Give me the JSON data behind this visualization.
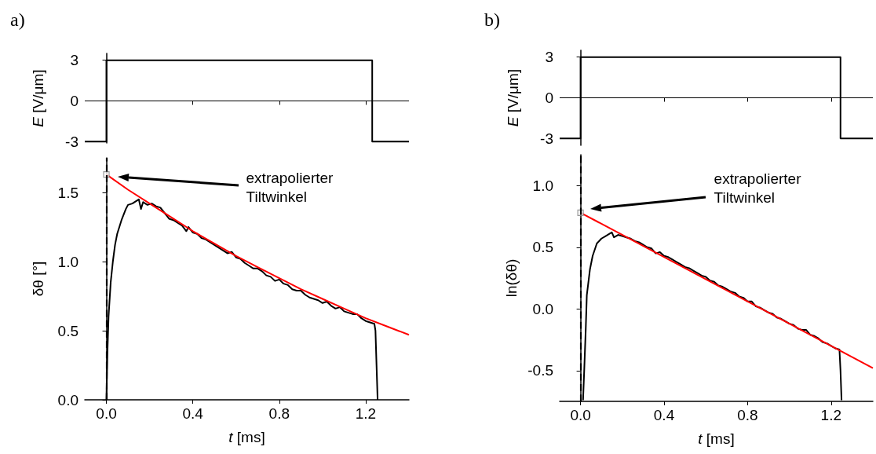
{
  "chart_data": [
    {
      "type": "line",
      "title": "a)",
      "ylabel": "E [V/μm]",
      "xlim": [
        -0.1,
        1.4
      ],
      "xticks": [
        {
          "value": 0,
          "label": null
        },
        {
          "value": 0.4,
          "label": null
        },
        {
          "value": 0.8,
          "label": null
        },
        {
          "value": 1.2,
          "label": null
        }
      ],
      "ylim": [
        -3.1,
        3.5
      ],
      "yticks": [
        -3,
        0,
        3
      ],
      "tick_labels": "y",
      "ref_lines": [
        {
          "axis": "y",
          "value": 0,
          "color": "#000000",
          "line_style": "solid"
        }
      ],
      "series": [
        {
          "color": "#000000",
          "x": [
            -0.1,
            0,
            0,
            1.23,
            1.23,
            1.4
          ],
          "values": [
            -3,
            -3,
            3,
            3,
            -3,
            -3
          ]
        }
      ]
    },
    {
      "type": "line",
      "xlabel": "t [ms]",
      "ylabel": "δθ [°]",
      "xlim": [
        -0.1,
        1.4
      ],
      "xticks": [
        {
          "value": 0,
          "label": "0.0"
        },
        {
          "value": 0.4,
          "label": "0.4"
        },
        {
          "value": 0.8,
          "label": "0.8"
        },
        {
          "value": 1.2,
          "label": "1.2"
        }
      ],
      "ylim": [
        0,
        1.75
      ],
      "yticks": [
        {
          "value": 0,
          "label": "0.0"
        },
        {
          "value": 0.5,
          "label": "0.5"
        },
        {
          "value": 1,
          "label": "1.0"
        },
        {
          "value": 1.5,
          "label": "1.5"
        }
      ],
      "grid": false,
      "ref_lines": [
        {
          "axis": "x",
          "value": 0,
          "color": "#000000",
          "line_style": "dashed"
        }
      ],
      "annotations": [
        "extrapolierter\nTiltwinkel"
      ],
      "series": [
        {
          "color": "#000000",
          "x": [
            0,
            0.005,
            0.01,
            0.02,
            0.03,
            0.04,
            0.05,
            0.07,
            0.09,
            0.1,
            0.12,
            0.14,
            0.15,
            0.16,
            0.17,
            0.19,
            0.21,
            0.23,
            0.25,
            0.27,
            0.29,
            0.31,
            0.33,
            0.35,
            0.37,
            0.38,
            0.4,
            0.42,
            0.44,
            0.46,
            0.48,
            0.5,
            0.52,
            0.54,
            0.56,
            0.58,
            0.6,
            0.62,
            0.64,
            0.66,
            0.68,
            0.7,
            0.72,
            0.74,
            0.76,
            0.78,
            0.8,
            0.82,
            0.84,
            0.86,
            0.88,
            0.9,
            0.92,
            0.94,
            0.96,
            0.98,
            1,
            1.02,
            1.04,
            1.06,
            1.08,
            1.1,
            1.12,
            1.14,
            1.16,
            1.18,
            1.2,
            1.22,
            1.24,
            1.245,
            1.25,
            1.255
          ],
          "values": [
            0,
            0.35,
            0.6,
            0.85,
            1,
            1.12,
            1.2,
            1.3,
            1.38,
            1.41,
            1.42,
            1.44,
            1.45,
            1.38,
            1.43,
            1.41,
            1.42,
            1.4,
            1.39,
            1.35,
            1.31,
            1.3,
            1.28,
            1.26,
            1.22,
            1.25,
            1.21,
            1.2,
            1.17,
            1.16,
            1.14,
            1.12,
            1.1,
            1.08,
            1.06,
            1.07,
            1.03,
            1.02,
            0.99,
            0.97,
            0.95,
            0.95,
            0.93,
            0.9,
            0.89,
            0.86,
            0.87,
            0.84,
            0.83,
            0.8,
            0.79,
            0.79,
            0.76,
            0.74,
            0.73,
            0.72,
            0.7,
            0.71,
            0.68,
            0.66,
            0.67,
            0.64,
            0.63,
            0.62,
            0.62,
            0.59,
            0.57,
            0.56,
            0.55,
            0.5,
            0.25,
            0
          ]
        },
        {
          "color": "#ff0000",
          "x": [
            0,
            0.1,
            0.2,
            0.3,
            0.4,
            0.5,
            0.6,
            0.7,
            0.8,
            0.9,
            1,
            1.1,
            1.2,
            1.3,
            1.4
          ],
          "values": [
            1.63,
            1.52,
            1.42,
            1.32,
            1.22,
            1.13,
            1.04,
            0.96,
            0.88,
            0.8,
            0.73,
            0.66,
            0.59,
            0.53,
            0.47
          ]
        },
        {
          "type": "scatter",
          "marker": "square",
          "color": "#808080",
          "x": [
            0
          ],
          "values": [
            1.63
          ]
        }
      ]
    },
    {
      "type": "line",
      "title": "b)",
      "ylabel": "E [V/μm]",
      "xlim": [
        -0.1,
        1.4
      ],
      "xticks": [
        {
          "value": 0,
          "label": null
        },
        {
          "value": 0.4,
          "label": null
        },
        {
          "value": 0.8,
          "label": null
        },
        {
          "value": 1.2,
          "label": null
        }
      ],
      "ylim": [
        -3.5,
        3.5
      ],
      "yticks": [
        -3,
        0,
        3
      ],
      "tick_labels": "y",
      "ref_lines": [
        {
          "axis": "y",
          "value": 0,
          "color": "#000000",
          "line_style": "solid"
        }
      ],
      "series": [
        {
          "color": "#000000",
          "x": [
            -0.1,
            0,
            0,
            1.245,
            1.245,
            1.4
          ],
          "values": [
            -3,
            -3,
            3,
            3,
            -3,
            -3
          ]
        }
      ]
    },
    {
      "type": "line",
      "xlabel": "t [ms]",
      "ylabel": "ln(δθ)",
      "xlim": [
        -0.1,
        1.4
      ],
      "xticks": [
        {
          "value": 0,
          "label": "0.0"
        },
        {
          "value": 0.4,
          "label": "0.4"
        },
        {
          "value": 0.8,
          "label": "0.8"
        },
        {
          "value": 1.2,
          "label": "1.2"
        }
      ],
      "ylim": [
        -0.75,
        1.25
      ],
      "yticks": [
        {
          "value": -0.5,
          "label": "-0.5"
        },
        {
          "value": 0,
          "label": "0.0"
        },
        {
          "value": 0.5,
          "label": "0.5"
        },
        {
          "value": 1,
          "label": "1.0"
        }
      ],
      "grid": false,
      "ref_lines": [
        {
          "axis": "x",
          "value": 0,
          "color": "#000000",
          "line_style": "dashed"
        }
      ],
      "annotations": [
        "extrapolierter\nTiltwinkel"
      ],
      "series": [
        {
          "color": "#000000",
          "x": [
            0.012,
            0.018,
            0.025,
            0.03,
            0.045,
            0.058,
            0.078,
            0.1,
            0.12,
            0.14,
            0.15,
            0.16,
            0.18,
            0.2,
            0.22,
            0.24,
            0.26,
            0.28,
            0.3,
            0.32,
            0.34,
            0.36,
            0.38,
            0.4,
            0.42,
            0.44,
            0.46,
            0.48,
            0.5,
            0.52,
            0.54,
            0.56,
            0.58,
            0.6,
            0.62,
            0.64,
            0.66,
            0.68,
            0.7,
            0.72,
            0.74,
            0.76,
            0.78,
            0.8,
            0.82,
            0.84,
            0.86,
            0.88,
            0.9,
            0.92,
            0.94,
            0.96,
            0.98,
            1,
            1.02,
            1.04,
            1.06,
            1.08,
            1.1,
            1.12,
            1.14,
            1.16,
            1.18,
            1.2,
            1.22,
            1.24,
            1.245,
            1.25
          ],
          "values": [
            -0.74,
            -0.48,
            -0.16,
            0.11,
            0.32,
            0.43,
            0.53,
            0.57,
            0.59,
            0.61,
            0.62,
            0.58,
            0.6,
            0.59,
            0.58,
            0.57,
            0.55,
            0.54,
            0.52,
            0.5,
            0.49,
            0.45,
            0.46,
            0.43,
            0.42,
            0.4,
            0.38,
            0.36,
            0.34,
            0.33,
            0.31,
            0.29,
            0.27,
            0.26,
            0.23,
            0.22,
            0.19,
            0.18,
            0.16,
            0.14,
            0.13,
            0.1,
            0.09,
            0.06,
            0.06,
            0.02,
            0.01,
            -0.01,
            -0.03,
            -0.04,
            -0.07,
            -0.08,
            -0.1,
            -0.12,
            -0.13,
            -0.16,
            -0.17,
            -0.17,
            -0.21,
            -0.22,
            -0.24,
            -0.27,
            -0.28,
            -0.3,
            -0.32,
            -0.33,
            -0.5,
            -0.74
          ]
        },
        {
          "color": "#ff0000",
          "x": [
            0,
            1.4
          ],
          "values": [
            0.78,
            -0.48
          ]
        },
        {
          "type": "scatter",
          "marker": "square",
          "color": "#808080",
          "x": [
            0
          ],
          "values": [
            0.78
          ]
        }
      ]
    }
  ]
}
